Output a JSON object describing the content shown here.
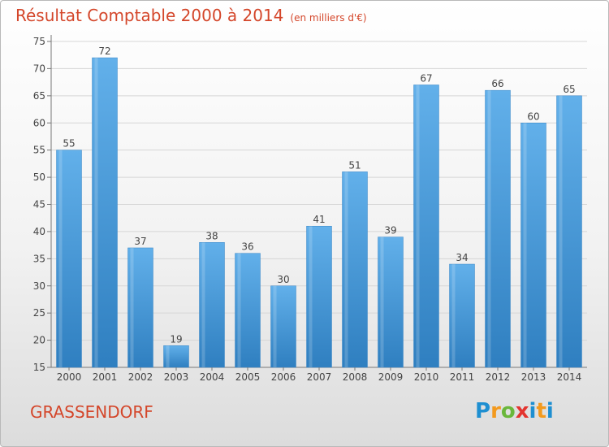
{
  "title": "Résultat Comptable 2000 à 2014",
  "unit": "(en milliers d'€)",
  "commune": "GRASSENDORF",
  "logo": "Proxiti",
  "chart_data": {
    "type": "bar",
    "categories": [
      "2000",
      "2001",
      "2002",
      "2003",
      "2004",
      "2005",
      "2006",
      "2007",
      "2008",
      "2009",
      "2010",
      "2011",
      "2012",
      "2013",
      "2014"
    ],
    "values": [
      55,
      72,
      37,
      19,
      38,
      36,
      30,
      41,
      51,
      39,
      67,
      34,
      66,
      60,
      65
    ],
    "ylim": [
      15,
      75
    ],
    "yticks": [
      15,
      20,
      25,
      30,
      35,
      40,
      45,
      50,
      55,
      60,
      65,
      70,
      75
    ],
    "grid": true,
    "bar_color": "#3f93d6",
    "bar_color_light": "#62b0ea"
  }
}
